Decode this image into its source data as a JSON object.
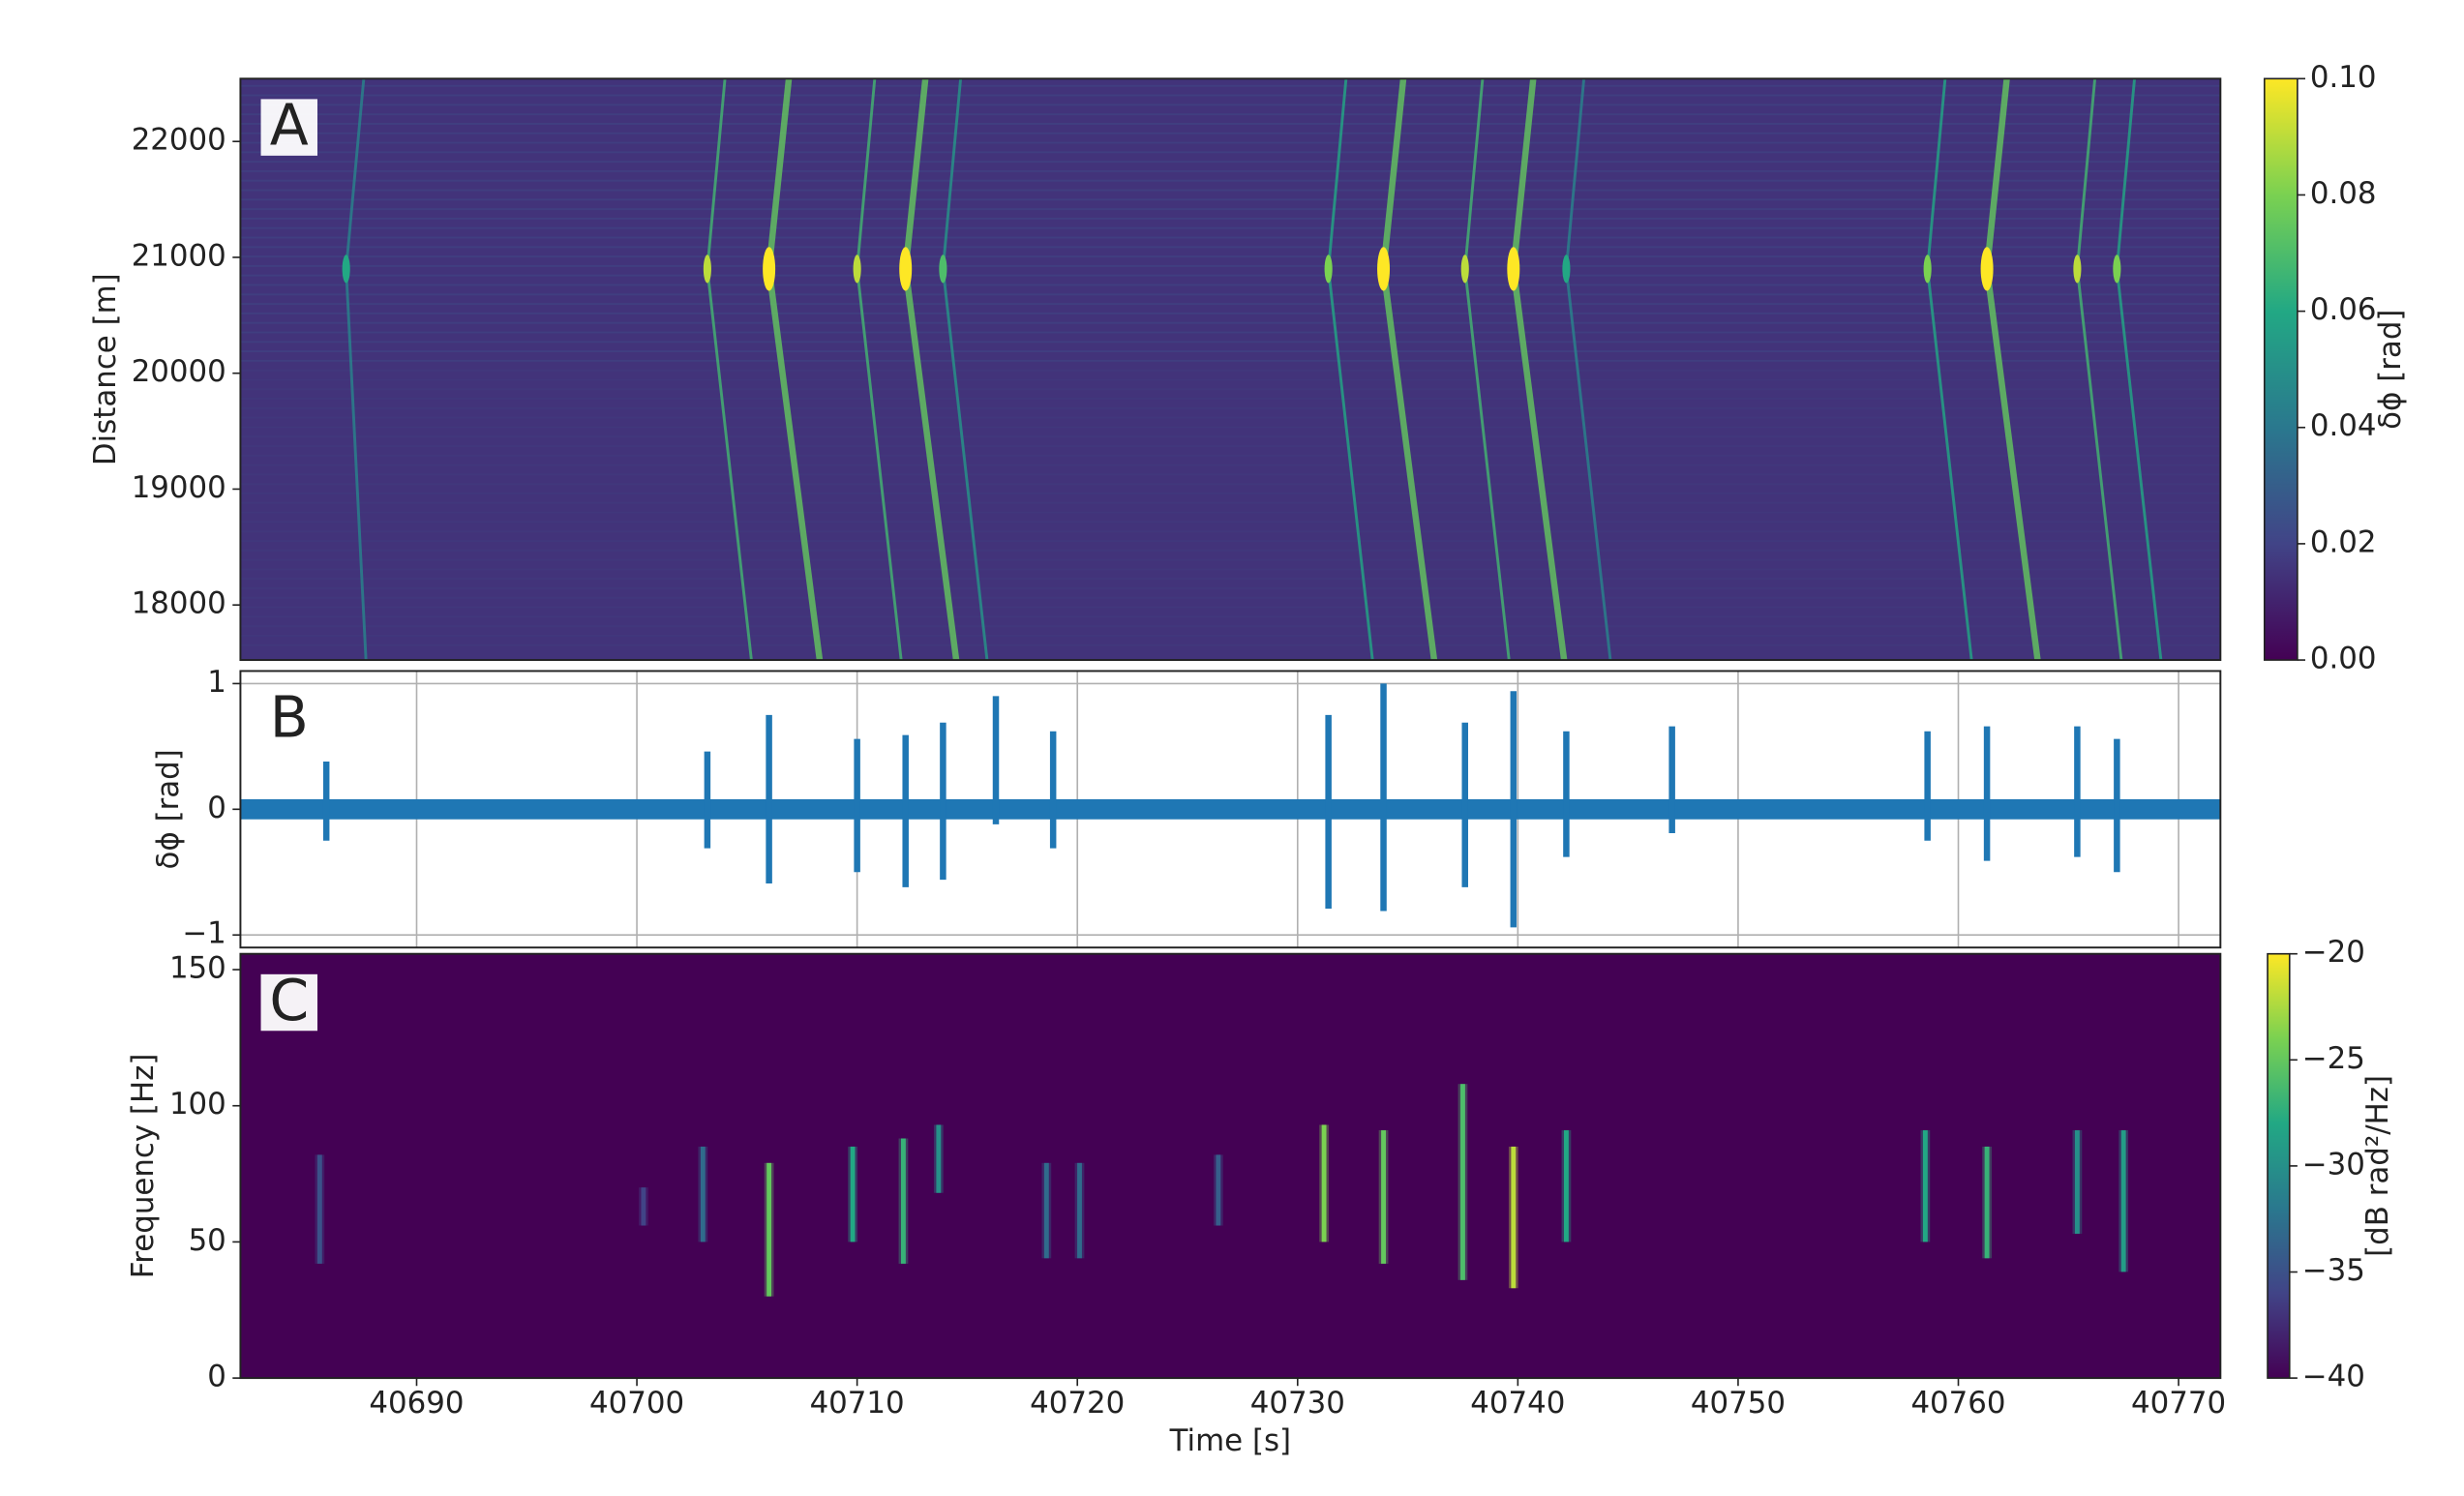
{
  "chart_data": [
    {
      "type": "heatmap",
      "label": "A",
      "ylabel": "Distance [m]",
      "xlim": [
        40682.0,
        40771.9
      ],
      "ylim": [
        17525,
        22542
      ],
      "yticks": [
        18000,
        19000,
        20000,
        21000,
        22000
      ],
      "background_level": 0.015,
      "colormap": [
        "#440154",
        "#414487",
        "#2a788e",
        "#22a884",
        "#7ad151",
        "#fde725"
      ],
      "colorbar": {
        "label": "δϕ [rad]",
        "lim": [
          0,
          0.1
        ],
        "ticks": [
          {
            "value": 0,
            "label": "0.00"
          },
          {
            "value": 0.02,
            "label": "0.02"
          },
          {
            "value": 0.04,
            "label": "0.04"
          },
          {
            "value": 0.06,
            "label": "0.06"
          },
          {
            "value": 0.08,
            "label": "0.08"
          },
          {
            "value": 0.1,
            "label": "0.10"
          }
        ]
      },
      "tracks": [
        {
          "x": [
            40687.6,
            40686.8,
            40687.7
          ],
          "y": [
            22542,
            20900,
            17525
          ],
          "amplitude": 0.06
        },
        {
          "x": [
            40704.0,
            40703.2,
            40705.2
          ],
          "y": [
            22542,
            20900,
            17525
          ],
          "amplitude": 0.09
        },
        {
          "x": [
            40706.9,
            40706.0,
            40708.3
          ],
          "y": [
            22542,
            20900,
            17525
          ],
          "amplitude": 0.1
        },
        {
          "x": [
            40710.8,
            40710.0,
            40712.0
          ],
          "y": [
            22542,
            20900,
            17525
          ],
          "amplitude": 0.09
        },
        {
          "x": [
            40713.1,
            40712.2,
            40714.5
          ],
          "y": [
            22542,
            20900,
            17525
          ],
          "amplitude": 0.1
        },
        {
          "x": [
            40714.7,
            40713.9,
            40715.9
          ],
          "y": [
            22542,
            20900,
            17525
          ],
          "amplitude": 0.07
        },
        {
          "x": [
            40732.2,
            40731.4,
            40733.4
          ],
          "y": [
            22542,
            20900,
            17525
          ],
          "amplitude": 0.08
        },
        {
          "x": [
            40734.8,
            40733.9,
            40736.2
          ],
          "y": [
            22542,
            20900,
            17525
          ],
          "amplitude": 0.1
        },
        {
          "x": [
            40738.4,
            40737.6,
            40739.6
          ],
          "y": [
            22542,
            20900,
            17525
          ],
          "amplitude": 0.09
        },
        {
          "x": [
            40740.7,
            40739.8,
            40742.1
          ],
          "y": [
            22542,
            20900,
            17525
          ],
          "amplitude": 0.1
        },
        {
          "x": [
            40743.0,
            40742.2,
            40744.2
          ],
          "y": [
            22542,
            20900,
            17525
          ],
          "amplitude": 0.06
        },
        {
          "x": [
            40759.4,
            40758.6,
            40760.6
          ],
          "y": [
            22542,
            20900,
            17525
          ],
          "amplitude": 0.08
        },
        {
          "x": [
            40762.2,
            40761.3,
            40763.6
          ],
          "y": [
            22542,
            20900,
            17525
          ],
          "amplitude": 0.1
        },
        {
          "x": [
            40766.2,
            40765.4,
            40767.4
          ],
          "y": [
            22542,
            20900,
            17525
          ],
          "amplitude": 0.09
        },
        {
          "x": [
            40768.0,
            40767.2,
            40769.2
          ],
          "y": [
            22542,
            20900,
            17525
          ],
          "amplitude": 0.08
        }
      ]
    },
    {
      "type": "line",
      "label": "B",
      "ylabel": "δϕ [rad]",
      "xlim": [
        40682.0,
        40771.9
      ],
      "ylim": [
        -1.1,
        1.1
      ],
      "yticks": [
        {
          "value": -1,
          "label": "−1"
        },
        0,
        1
      ],
      "grid": true,
      "color": "#1f77b4",
      "noise_band": [
        -0.08,
        0.08
      ],
      "bursts": [
        {
          "time": 40685.9,
          "max": 0.38,
          "min": -0.25
        },
        {
          "time": 40703.2,
          "max": 0.46,
          "min": -0.31
        },
        {
          "time": 40706.0,
          "max": 0.75,
          "min": -0.59
        },
        {
          "time": 40710.0,
          "max": 0.56,
          "min": -0.5
        },
        {
          "time": 40712.2,
          "max": 0.59,
          "min": -0.62
        },
        {
          "time": 40713.9,
          "max": 0.69,
          "min": -0.56
        },
        {
          "time": 40716.3,
          "max": 0.9,
          "min": -0.12
        },
        {
          "time": 40718.9,
          "max": 0.62,
          "min": -0.31
        },
        {
          "time": 40731.4,
          "max": 0.75,
          "min": -0.79
        },
        {
          "time": 40733.9,
          "max": 1.0,
          "min": -0.81
        },
        {
          "time": 40737.6,
          "max": 0.69,
          "min": -0.62
        },
        {
          "time": 40739.8,
          "max": 0.94,
          "min": -0.94
        },
        {
          "time": 40742.2,
          "max": 0.62,
          "min": -0.38
        },
        {
          "time": 40747.0,
          "max": 0.66,
          "min": -0.19
        },
        {
          "time": 40758.6,
          "max": 0.62,
          "min": -0.25
        },
        {
          "time": 40761.3,
          "max": 0.66,
          "min": -0.41
        },
        {
          "time": 40765.4,
          "max": 0.66,
          "min": -0.38
        },
        {
          "time": 40767.2,
          "max": 0.56,
          "min": -0.5
        }
      ]
    },
    {
      "type": "spectrogram",
      "label": "C",
      "ylabel": "Frequency [Hz]",
      "xlabel": "Time [s]",
      "xlim": [
        40682.0,
        40771.9
      ],
      "ylim": [
        0,
        155.8
      ],
      "xticks": [
        40690,
        40700,
        40710,
        40720,
        40730,
        40740,
        40750,
        40760,
        40770
      ],
      "yticks": [
        0,
        50,
        100,
        150
      ],
      "background_level": -40,
      "colormap": [
        "#440154",
        "#414487",
        "#2a788e",
        "#22a884",
        "#7ad151",
        "#fde725"
      ],
      "colorbar": {
        "label": "[dB rad²/Hz]",
        "lim": [
          -40,
          -20
        ],
        "ticks": [
          {
            "value": -40,
            "label": "−40"
          },
          {
            "value": -35,
            "label": "−35"
          },
          {
            "value": -30,
            "label": "−30"
          },
          {
            "value": -25,
            "label": "−25"
          },
          {
            "value": -20,
            "label": "−20"
          }
        ]
      },
      "streaks": [
        {
          "time": 40685.6,
          "freq": [
            42,
            82
          ],
          "level": -35
        },
        {
          "time": 40700.3,
          "freq": [
            56,
            70
          ],
          "level": -36
        },
        {
          "time": 40703.0,
          "freq": [
            50,
            85
          ],
          "level": -33
        },
        {
          "time": 40706.0,
          "freq": [
            30,
            79
          ],
          "level": -25
        },
        {
          "time": 40709.8,
          "freq": [
            50,
            85
          ],
          "level": -28
        },
        {
          "time": 40712.1,
          "freq": [
            42,
            88
          ],
          "level": -27
        },
        {
          "time": 40713.7,
          "freq": [
            68,
            93
          ],
          "level": -30
        },
        {
          "time": 40718.6,
          "freq": [
            44,
            79
          ],
          "level": -33
        },
        {
          "time": 40720.1,
          "freq": [
            44,
            79
          ],
          "level": -33
        },
        {
          "time": 40726.4,
          "freq": [
            56,
            82
          ],
          "level": -34
        },
        {
          "time": 40731.2,
          "freq": [
            50,
            93
          ],
          "level": -24
        },
        {
          "time": 40733.9,
          "freq": [
            42,
            91
          ],
          "level": -25
        },
        {
          "time": 40737.5,
          "freq": [
            36,
            108
          ],
          "level": -26
        },
        {
          "time": 40739.8,
          "freq": [
            33,
            85
          ],
          "level": -22
        },
        {
          "time": 40742.2,
          "freq": [
            50,
            91
          ],
          "level": -28
        },
        {
          "time": 40758.5,
          "freq": [
            50,
            91
          ],
          "level": -28
        },
        {
          "time": 40761.3,
          "freq": [
            44,
            85
          ],
          "level": -27
        },
        {
          "time": 40765.4,
          "freq": [
            53,
            91
          ],
          "level": -30
        },
        {
          "time": 40767.5,
          "freq": [
            39,
            91
          ],
          "level": -29
        }
      ]
    }
  ]
}
